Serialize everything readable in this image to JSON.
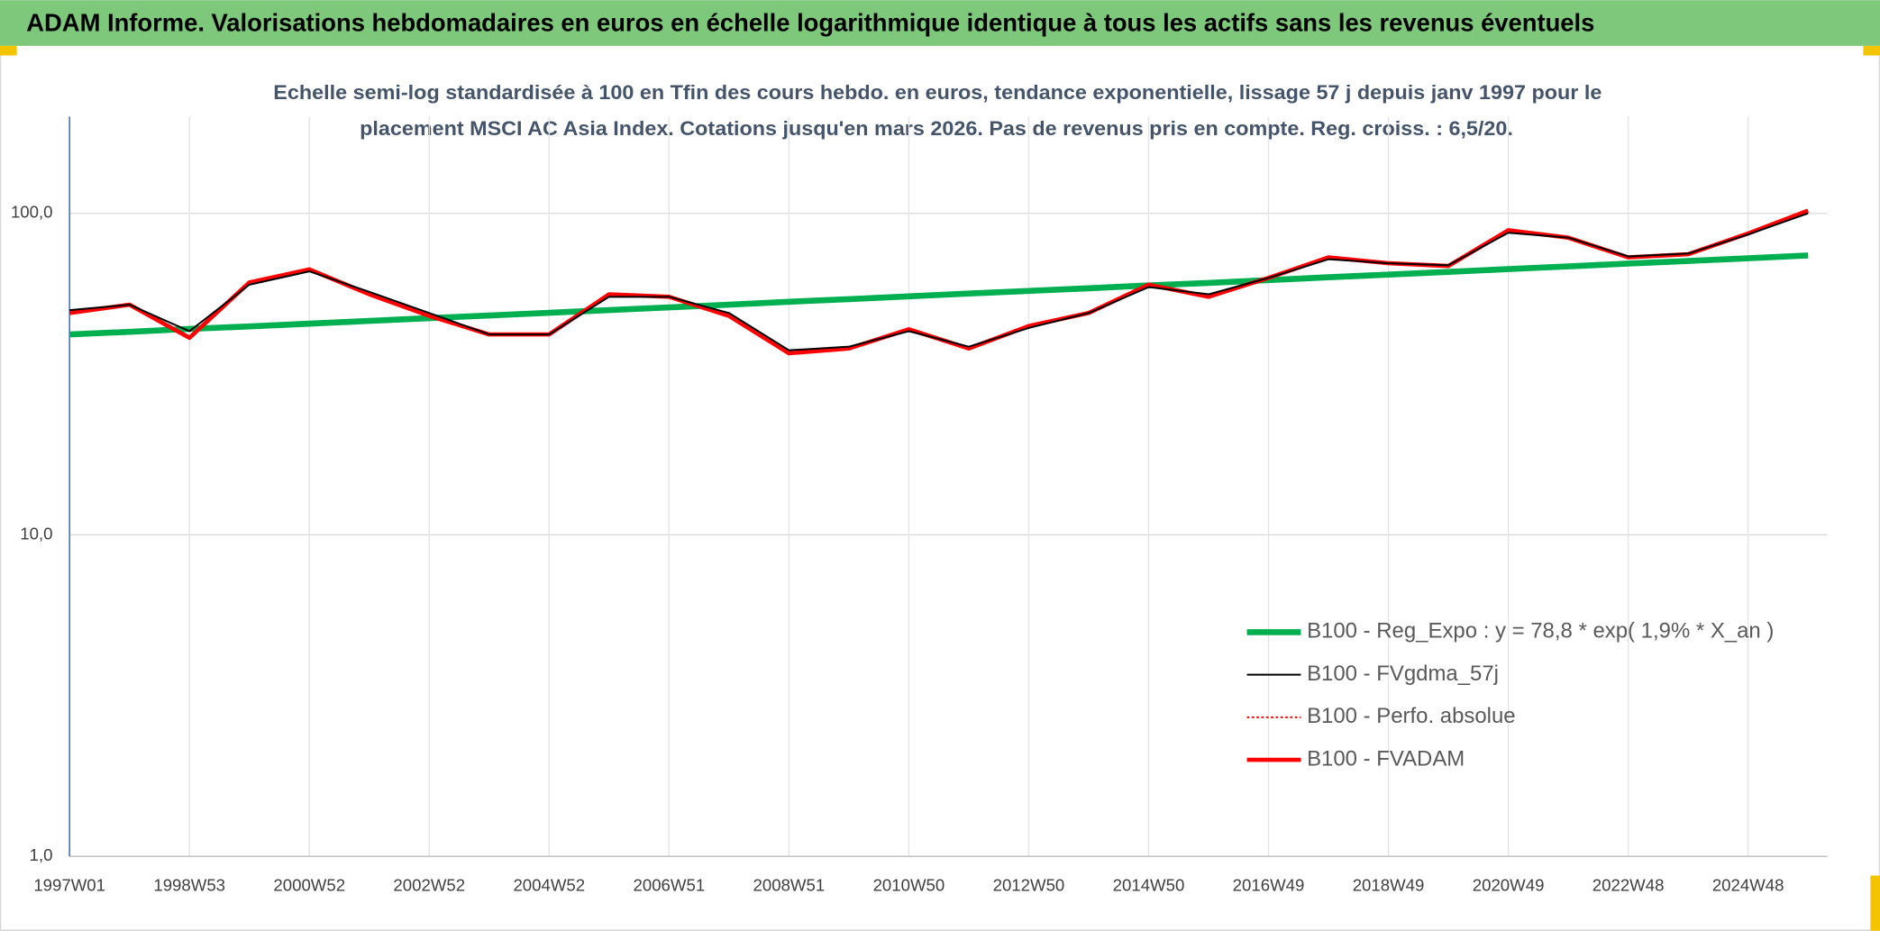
{
  "header": {
    "title": "ADAM Informe. Valorisations hebdomadaires en euros en échelle logarithmique identique à tous les actifs sans les revenus éventuels"
  },
  "chart_data": {
    "type": "line",
    "subtitle": [
      "Echelle semi-log standardisée à 100 en Tfin des cours hebdo. en euros, tendance exponentielle, lissage 57 j depuis janv 1997 pour le",
      "placement MSCI AC Asia Index. Cotations jusqu'en mars 2026. Pas de revenus pris en compte. Reg. croiss. : 6,5/20."
    ],
    "categories": [
      "1997W01",
      null,
      "1998W53",
      null,
      "2000W52",
      null,
      "2002W52",
      null,
      "2004W52",
      null,
      "2006W51",
      null,
      "2008W51",
      null,
      "2010W50",
      null,
      "2012W50",
      null,
      "2014W50",
      null,
      "2016W49",
      null,
      "2018W49",
      null,
      "2020W49",
      null,
      "2022W48",
      null,
      "2024W48",
      null
    ],
    "log_scale": true,
    "ylim": [
      1,
      200
    ],
    "yticks": [
      {
        "value": 1,
        "label": "1,0"
      },
      {
        "value": 10,
        "label": "10,0"
      },
      {
        "value": 100,
        "label": "100,0"
      }
    ],
    "grid": true,
    "legend": "lower right",
    "series": [
      {
        "name": "B100 - Reg_Expo : y = 78,8 * exp( 1,9% *  X_an )",
        "color": "#00b050",
        "style": "solid",
        "width": 5,
        "values": [
          42.0,
          42.8,
          43.7,
          44.5,
          45.4,
          46.3,
          47.2,
          48.1,
          49.1,
          50.0,
          51.0,
          52.0,
          53.1,
          54.1,
          55.2,
          56.3,
          57.4,
          58.5,
          59.7,
          60.8,
          62.0,
          63.3,
          64.5,
          65.8,
          67.1,
          68.4,
          69.8,
          71.1,
          72.5,
          74.0
        ]
      },
      {
        "name": "B100 - FVgdma_57j",
        "color": "#000000",
        "style": "solid",
        "width": 1.5,
        "values": [
          50,
          52,
          43,
          60,
          66,
          57,
          49,
          42,
          42,
          55,
          55,
          49,
          37.5,
          38.5,
          43,
          38.5,
          44,
          49,
          59,
          56,
          63,
          72,
          70,
          69,
          87,
          84,
          73.5,
          75,
          86,
          100
        ]
      },
      {
        "name": "B100 - Perfo. absolue",
        "color": "#ff0000",
        "style": "dotted",
        "width": 1.5,
        "values": [
          49,
          52,
          41,
          61,
          67,
          56,
          48,
          42,
          42,
          56,
          55,
          48,
          36.7,
          38,
          43.6,
          38,
          44.6,
          49,
          60,
          55,
          63,
          73,
          70,
          68.6,
          88.6,
          84,
          73,
          74.6,
          86.6,
          102
        ]
      },
      {
        "name": "B100 - FVADAM",
        "color": "#ff0000",
        "style": "solid",
        "width": 3.5,
        "values": [
          49,
          52,
          41,
          61,
          67,
          56,
          48,
          42,
          42,
          56,
          55,
          48,
          36.7,
          38,
          43.6,
          38,
          44.6,
          49,
          60,
          55,
          63,
          73,
          70,
          68.6,
          88.6,
          84,
          73,
          74.6,
          86.6,
          102
        ]
      }
    ]
  }
}
